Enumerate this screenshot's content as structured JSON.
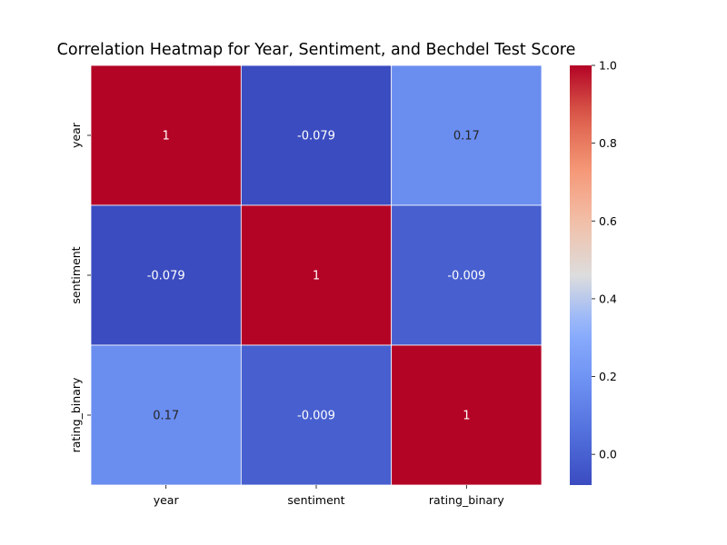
{
  "chart_data": {
    "type": "heatmap",
    "title": "Correlation Heatmap for Year, Sentiment, and Bechdel Test Score",
    "x_categories": [
      "year",
      "sentiment",
      "rating_binary"
    ],
    "y_categories": [
      "year",
      "sentiment",
      "rating_binary"
    ],
    "values": [
      [
        1,
        -0.079,
        0.17
      ],
      [
        -0.079,
        1,
        -0.009
      ],
      [
        0.17,
        -0.009,
        1
      ]
    ],
    "annotations": [
      [
        "1",
        "-0.079",
        "0.17"
      ],
      [
        "-0.079",
        "1",
        "-0.009"
      ],
      [
        "0.17",
        "-0.009",
        "1"
      ]
    ],
    "colormap": "coolwarm",
    "vmin": -0.079,
    "vmax": 1.0,
    "colorbar_ticks": [
      0.0,
      0.2,
      0.4,
      0.6,
      0.8,
      1.0
    ],
    "colorbar_tick_labels": [
      "0.0",
      "0.2",
      "0.4",
      "0.6",
      "0.8",
      "1.0"
    ],
    "xlabel": "",
    "ylabel": "",
    "grid_line_color": "#ffffff"
  }
}
